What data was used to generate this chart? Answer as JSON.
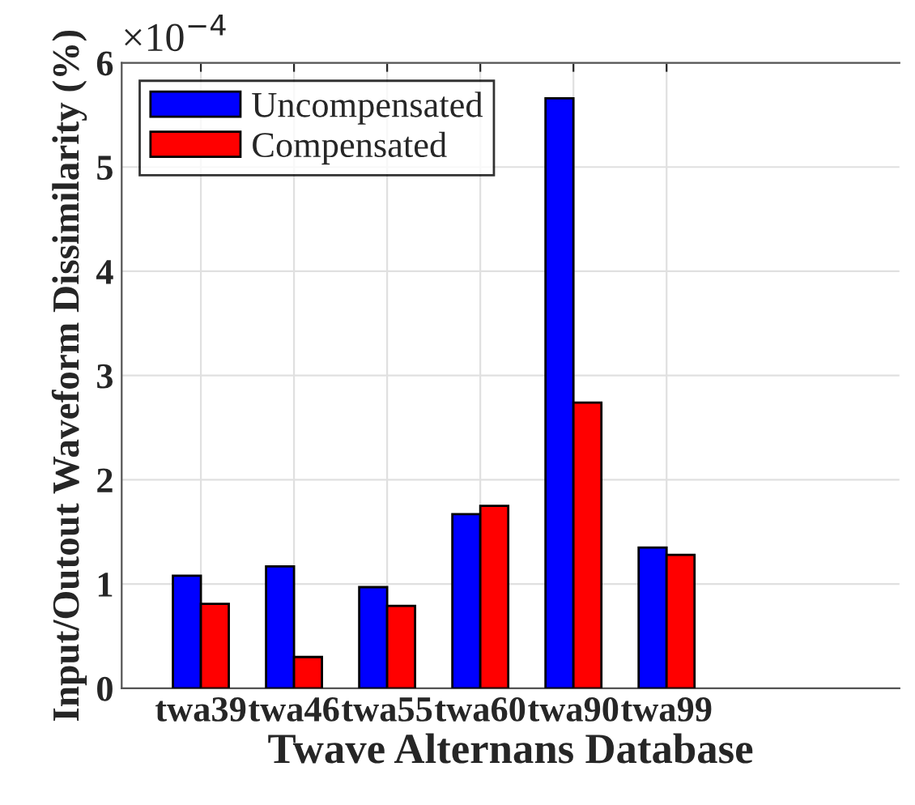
{
  "chart_data": {
    "type": "bar",
    "xlabel": "Twave Alternans Database",
    "ylabel": "Input/Outout Waveform Dissimilarity (%)",
    "categories": [
      "twa39",
      "twa46",
      "twa55",
      "twa60",
      "twa90",
      "twa99"
    ],
    "series": [
      {
        "name": "Uncompensated",
        "color": "#0000ff",
        "values": [
          1.08,
          1.17,
          0.97,
          1.67,
          5.66,
          1.35
        ]
      },
      {
        "name": "Compensated",
        "color": "#ff0000",
        "values": [
          0.81,
          0.3,
          0.79,
          1.75,
          2.74,
          1.28
        ]
      }
    ],
    "ylim": [
      0,
      6
    ],
    "yticks": [
      0,
      1,
      2,
      3,
      4,
      5,
      6
    ],
    "grid": true,
    "legend": "top left",
    "annotations": [
      "×10$^{−4}$"
    ]
  }
}
